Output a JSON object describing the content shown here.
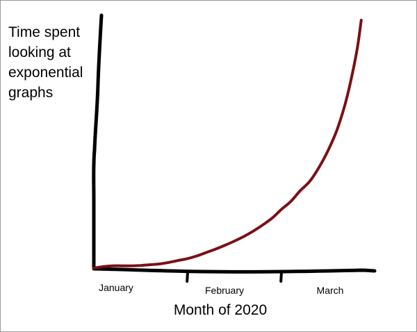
{
  "chart_data": {
    "type": "line",
    "title": "",
    "ylabel_lines": [
      "Time spent",
      "looking at",
      "exponential",
      "graphs"
    ],
    "xlabel": "Month of 2020",
    "categories": [
      "January",
      "February",
      "March"
    ],
    "series": [
      {
        "color": "#7a1015",
        "x": [
          0.0,
          0.1,
          0.2,
          0.3,
          0.4,
          0.5,
          0.6,
          0.7,
          0.8,
          0.9,
          1.0,
          1.1,
          1.2,
          1.3,
          1.4,
          1.5,
          1.6,
          1.7,
          1.8,
          1.9,
          2.0,
          2.1,
          2.2,
          2.3,
          2.4,
          2.5,
          2.6,
          2.7,
          2.8,
          2.85
        ],
        "values": [
          0.0,
          0.4,
          0.6,
          0.6,
          0.6,
          0.7,
          0.9,
          1.1,
          1.5,
          2.0,
          2.5,
          3.2,
          4.1,
          5.0,
          6.0,
          7.1,
          8.3,
          9.7,
          11.3,
          13.1,
          15.4,
          17.5,
          20.3,
          22.7,
          26.4,
          31.0,
          36.8,
          45.0,
          56.5,
          65.0
        ]
      }
    ],
    "xlim": [
      0,
      3
    ],
    "ylim": [
      0,
      65
    ],
    "grid": false,
    "legend": "none"
  }
}
